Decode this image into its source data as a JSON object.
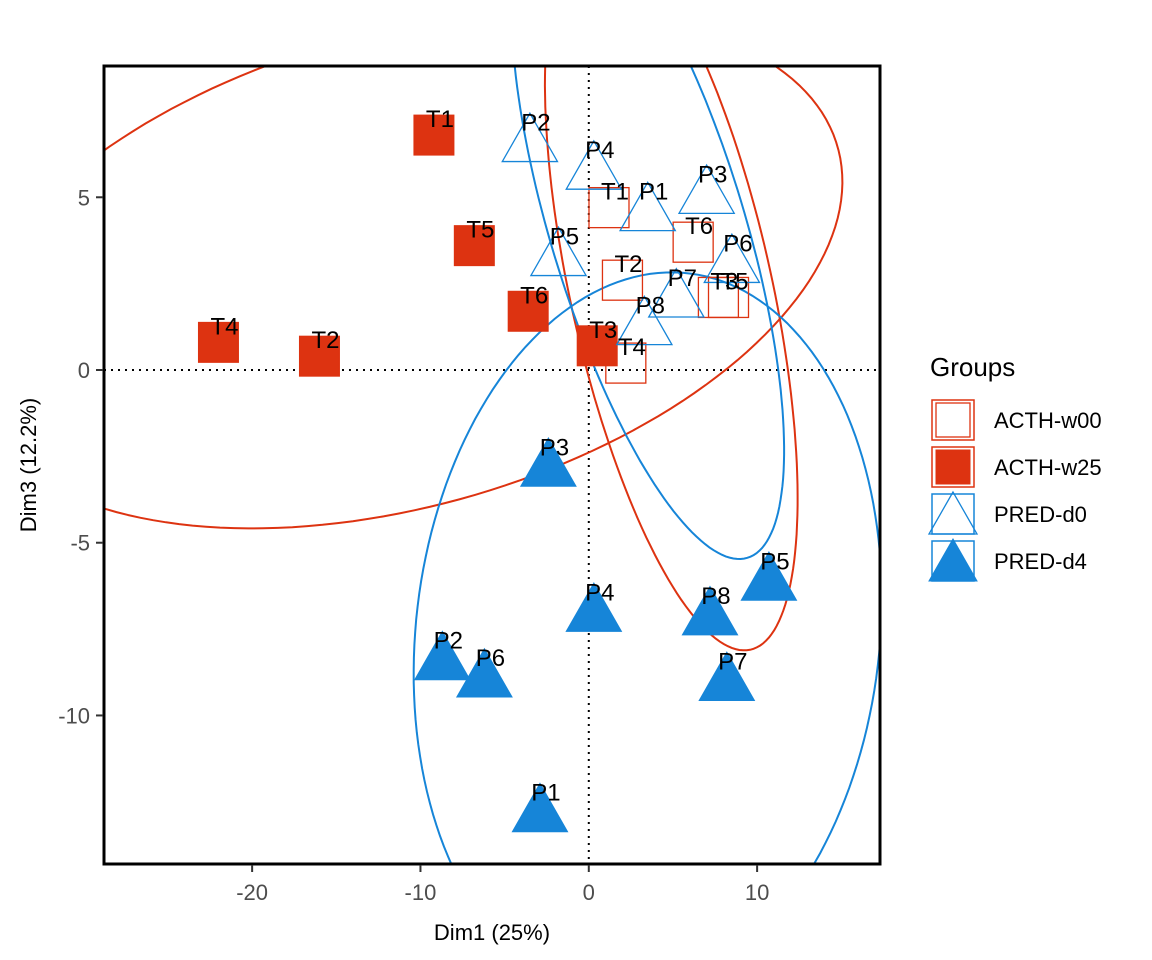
{
  "chart_data": {
    "type": "scatter",
    "xlabel": "Dim1 (25%)",
    "ylabel": "Dim3 (12.2%)",
    "xlim": [
      -28.8,
      17.3
    ],
    "ylim": [
      -14.3,
      8.8
    ],
    "x_ticks": [
      -20,
      -10,
      0,
      10
    ],
    "y_ticks": [
      -10,
      -5,
      0,
      5
    ],
    "x_tick_labels": [
      "-20",
      "-10",
      "0",
      "10"
    ],
    "y_tick_labels": [
      "-10",
      "-5",
      "0",
      "5"
    ],
    "reference_lines": {
      "x": 0,
      "y": 0,
      "style": "dotted"
    },
    "grid": false,
    "legend": {
      "title": "Groups",
      "position": "right",
      "entries": [
        "ACTH-w00",
        "ACTH-w25",
        "PRED-d0",
        "PRED-d4"
      ]
    },
    "colors": {
      "ACTH": "#dd3311",
      "PRED": "#1685d8"
    },
    "series": [
      {
        "name": "ACTH-w00",
        "marker": "open-square",
        "color": "#dd3311",
        "points": [
          {
            "label": "T1",
            "x": 1.2,
            "y": 4.7
          },
          {
            "label": "T2",
            "x": 2.0,
            "y": 2.6
          },
          {
            "label": "T3",
            "x": 7.7,
            "y": 2.1
          },
          {
            "label": "T4",
            "x": 2.2,
            "y": 0.2
          },
          {
            "label": "T5",
            "x": 8.3,
            "y": 2.1
          },
          {
            "label": "T6",
            "x": 6.2,
            "y": 3.7
          }
        ],
        "ellipse": {
          "cx": 4.9,
          "cy": 2.3,
          "rx": 11.6,
          "ry": 5.5,
          "angle": -60
        }
      },
      {
        "name": "ACTH-w25",
        "marker": "filled-square",
        "color": "#dd3311",
        "points": [
          {
            "label": "T1",
            "x": -9.2,
            "y": 6.8
          },
          {
            "label": "T2",
            "x": -16.0,
            "y": 0.4
          },
          {
            "label": "T3",
            "x": 0.5,
            "y": 0.7
          },
          {
            "label": "T4",
            "x": -22.0,
            "y": 0.8
          },
          {
            "label": "T5",
            "x": -6.8,
            "y": 3.6
          },
          {
            "label": "T6",
            "x": -3.6,
            "y": 1.7
          }
        ],
        "ellipse": {
          "cx": -11.1,
          "cy": 2.9,
          "rx": 26.3,
          "ry": 7.0,
          "angle": 6
        }
      },
      {
        "name": "PRED-d0",
        "marker": "open-triangle",
        "color": "#1685d8",
        "points": [
          {
            "label": "P1",
            "x": 3.5,
            "y": 4.7
          },
          {
            "label": "P2",
            "x": -3.5,
            "y": 6.7
          },
          {
            "label": "P3",
            "x": 7.0,
            "y": 5.2
          },
          {
            "label": "P4",
            "x": 0.3,
            "y": 5.9
          },
          {
            "label": "P5",
            "x": -1.8,
            "y": 3.4
          },
          {
            "label": "P6",
            "x": 8.5,
            "y": 3.2
          },
          {
            "label": "P7",
            "x": 5.2,
            "y": 2.2
          },
          {
            "label": "P8",
            "x": 3.3,
            "y": 1.4
          }
        ],
        "ellipse": {
          "cx": 3.5,
          "cy": 4.1,
          "rx": 11.5,
          "ry": 5.0,
          "angle": -52
        }
      },
      {
        "name": "PRED-d4",
        "marker": "filled-triangle",
        "color": "#1685d8",
        "points": [
          {
            "label": "P1",
            "x": -2.9,
            "y": -12.7
          },
          {
            "label": "P2",
            "x": -8.7,
            "y": -8.3
          },
          {
            "label": "P3",
            "x": -2.4,
            "y": -2.7
          },
          {
            "label": "P4",
            "x": 0.3,
            "y": -6.9
          },
          {
            "label": "P5",
            "x": 10.7,
            "y": -6.0
          },
          {
            "label": "P6",
            "x": -6.2,
            "y": -8.8
          },
          {
            "label": "P7",
            "x": 8.2,
            "y": -8.9
          },
          {
            "label": "P8",
            "x": 7.2,
            "y": -7.0
          }
        ],
        "ellipse": {
          "cx": 3.5,
          "cy": -7.7,
          "rx": 14.0,
          "ry": 10.4,
          "angle": 10
        }
      }
    ]
  }
}
